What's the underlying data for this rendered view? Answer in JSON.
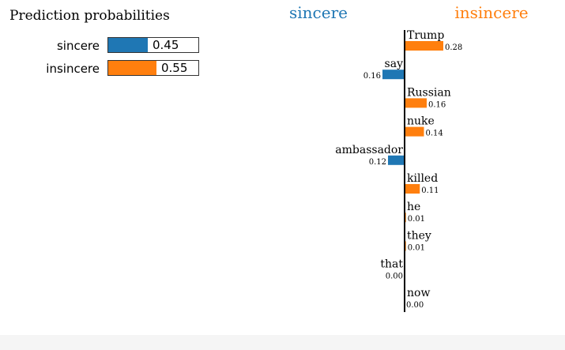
{
  "prediction": {
    "title": "Prediction probabilities",
    "rows": [
      {
        "label": "sincere",
        "value": 0.45,
        "value_text": "0.45",
        "color": "#1f77b4"
      },
      {
        "label": "insincere",
        "value": 0.55,
        "value_text": "0.55",
        "color": "#ff7f0e"
      }
    ]
  },
  "chart_data": {
    "type": "bar",
    "orientation": "horizontal-diverging",
    "class_left": {
      "label": "sincere",
      "color": "#1f77b4"
    },
    "class_right": {
      "label": "insincere",
      "color": "#ff7f0e"
    },
    "features": [
      {
        "word": "Trump",
        "weight": 0.28,
        "weight_text": "0.28",
        "side": "insincere"
      },
      {
        "word": "say",
        "weight": 0.16,
        "weight_text": "0.16",
        "side": "sincere"
      },
      {
        "word": "Russian",
        "weight": 0.16,
        "weight_text": "0.16",
        "side": "insincere"
      },
      {
        "word": "nuke",
        "weight": 0.14,
        "weight_text": "0.14",
        "side": "insincere"
      },
      {
        "word": "ambassador",
        "weight": 0.12,
        "weight_text": "0.12",
        "side": "sincere"
      },
      {
        "word": "killed",
        "weight": 0.11,
        "weight_text": "0.11",
        "side": "insincere"
      },
      {
        "word": "he",
        "weight": 0.01,
        "weight_text": "0.01",
        "side": "insincere"
      },
      {
        "word": "they",
        "weight": 0.01,
        "weight_text": "0.01",
        "side": "insincere"
      },
      {
        "word": "that",
        "weight": 0.0,
        "weight_text": "0.00",
        "side": "sincere"
      },
      {
        "word": "now",
        "weight": 0.0,
        "weight_text": "0.00",
        "side": "insincere"
      }
    ]
  }
}
